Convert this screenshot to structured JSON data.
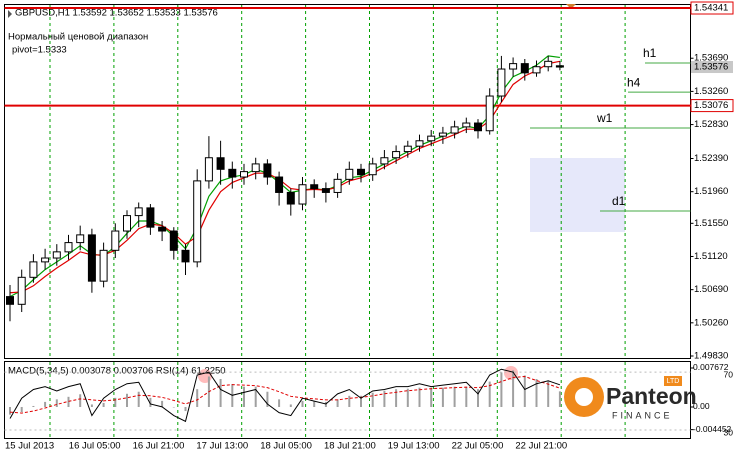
{
  "chart_data": [
    {
      "type": "candlestick",
      "title": "GBPUSD,H1  1.53592 1.53652 1.53533 1.53576",
      "annotations": [
        "Нормальный ценовой диапазон",
        "pivot=1.5333"
      ],
      "ylim": [
        1.49804,
        1.5438
      ],
      "yticks": [
        {
          "value": 1.5369,
          "label": "1.53690"
        },
        {
          "value": 1.5326,
          "label": "1.53260"
        },
        {
          "value": 1.5283,
          "label": "1.52830"
        },
        {
          "value": 1.5239,
          "label": "1.52390"
        },
        {
          "value": 1.5196,
          "label": "1.51960"
        },
        {
          "value": 1.5155,
          "label": "1.51550"
        },
        {
          "value": 1.5112,
          "label": "1.51120"
        },
        {
          "value": 1.5069,
          "label": "1.50690"
        },
        {
          "value": 1.5026,
          "label": "1.50260"
        },
        {
          "value": 1.4983,
          "label": "1.49830"
        }
      ],
      "red_lines": [
        1.54341,
        1.53076
      ],
      "levels": [
        {
          "label": "h1",
          "value": 1.53628
        },
        {
          "label": "h4",
          "value": 1.5325
        },
        {
          "label": "w1",
          "value": 1.52785
        },
        {
          "label": "d1",
          "value": 1.5171
        }
      ],
      "x_labels": [
        "15 Jul 2013",
        "16 Jul 05:00",
        "16 Jul 21:00",
        "17 Jul 13:00",
        "18 Jul 05:00",
        "18 Jul 21:00",
        "19 Jul 13:00",
        "22 Jul 05:00",
        "22 Jul 21:00"
      ],
      "open": [
        1.506,
        1.505,
        1.5085,
        1.5105,
        1.511,
        1.5118,
        1.513,
        1.514,
        1.508,
        1.512,
        1.5145,
        1.5165,
        1.5175,
        1.515,
        1.5145,
        1.512,
        1.5105,
        1.521,
        1.524,
        1.5225,
        1.5215,
        1.5222,
        1.5232,
        1.5215,
        1.5195,
        1.518,
        1.5205,
        1.52,
        1.5195,
        1.5212,
        1.5225,
        1.5218,
        1.5232,
        1.524,
        1.5248,
        1.5255,
        1.5262,
        1.5268,
        1.5272,
        1.528,
        1.5285,
        1.5275,
        1.532,
        1.5355,
        1.5362,
        1.535,
        1.5358,
        1.53592
      ],
      "high": [
        1.5075,
        1.5095,
        1.5115,
        1.5122,
        1.5128,
        1.514,
        1.5152,
        1.5148,
        1.513,
        1.5155,
        1.5172,
        1.5182,
        1.518,
        1.5158,
        1.515,
        1.5128,
        1.5225,
        1.5268,
        1.5262,
        1.5235,
        1.5232,
        1.524,
        1.5238,
        1.5222,
        1.52,
        1.5215,
        1.5212,
        1.5208,
        1.522,
        1.5235,
        1.5232,
        1.524,
        1.525,
        1.5256,
        1.5262,
        1.527,
        1.5276,
        1.528,
        1.5288,
        1.5292,
        1.529,
        1.533,
        1.5372,
        1.537,
        1.5368,
        1.5366,
        1.5372,
        1.53652
      ],
      "low": [
        1.5028,
        1.504,
        1.5078,
        1.5095,
        1.51,
        1.5108,
        1.512,
        1.5065,
        1.5072,
        1.511,
        1.5135,
        1.515,
        1.514,
        1.5132,
        1.5108,
        1.5088,
        1.5098,
        1.52,
        1.5205,
        1.52,
        1.5205,
        1.5212,
        1.5205,
        1.5178,
        1.5165,
        1.5172,
        1.5188,
        1.5182,
        1.5188,
        1.5205,
        1.5208,
        1.521,
        1.5225,
        1.5232,
        1.524,
        1.5248,
        1.5255,
        1.5258,
        1.5265,
        1.5272,
        1.5265,
        1.527,
        1.5312,
        1.5345,
        1.534,
        1.5345,
        1.5352,
        1.53533
      ],
      "close": [
        1.505,
        1.5085,
        1.5105,
        1.511,
        1.5118,
        1.513,
        1.514,
        1.508,
        1.512,
        1.5145,
        1.5165,
        1.5175,
        1.515,
        1.5145,
        1.512,
        1.5105,
        1.521,
        1.524,
        1.5225,
        1.5215,
        1.5222,
        1.5232,
        1.5215,
        1.5195,
        1.518,
        1.5205,
        1.52,
        1.5195,
        1.5212,
        1.5225,
        1.5218,
        1.5232,
        1.524,
        1.5248,
        1.5255,
        1.5262,
        1.5268,
        1.5272,
        1.528,
        1.5285,
        1.5275,
        1.532,
        1.5355,
        1.5362,
        1.535,
        1.5358,
        1.5365,
        1.53576
      ],
      "series": [
        {
          "color": "#00a000",
          "values": [
            1.506,
            1.5068,
            1.5082,
            1.5095,
            1.5105,
            1.5115,
            1.5126,
            1.5115,
            1.5113,
            1.5125,
            1.5142,
            1.5158,
            1.5158,
            1.5152,
            1.5138,
            1.5122,
            1.515,
            1.519,
            1.521,
            1.5215,
            1.5218,
            1.5225,
            1.522,
            1.5208,
            1.5195,
            1.5198,
            1.52,
            1.5198,
            1.5204,
            1.5214,
            1.5216,
            1.5224,
            1.5232,
            1.524,
            1.5248,
            1.5256,
            1.5262,
            1.5268,
            1.5275,
            1.5281,
            1.5278,
            1.5295,
            1.5325,
            1.5345,
            1.5352,
            1.536,
            1.5372,
            1.537
          ]
        },
        {
          "color": "#e00000",
          "values": [
            1.5065,
            1.5066,
            1.5074,
            1.5086,
            1.5097,
            1.5107,
            1.5118,
            1.5114,
            1.5114,
            1.512,
            1.5133,
            1.5148,
            1.5154,
            1.5152,
            1.5142,
            1.5128,
            1.5138,
            1.5172,
            1.5196,
            1.5208,
            1.5214,
            1.522,
            1.522,
            1.5212,
            1.52,
            1.5198,
            1.5199,
            1.5198,
            1.5202,
            1.521,
            1.5214,
            1.522,
            1.5228,
            1.5236,
            1.5244,
            1.5252,
            1.5258,
            1.5264,
            1.527,
            1.5277,
            1.5277,
            1.5288,
            1.5312,
            1.5335,
            1.5346,
            1.5353,
            1.5362,
            1.5365
          ]
        }
      ]
    },
    {
      "type": "macd",
      "title": "MACD(5,34,5) 0.003078 0.003706  RSI(14) 61.2250",
      "ylim": [
        -0.0061,
        0.00885
      ],
      "yticks": [
        0.007672,
        {
          "value": 0,
          "label": "0.00"
        },
        -0.004452
      ],
      "y2lim": [
        24.5,
        77
      ],
      "y2ticks": [
        70,
        30
      ],
      "series": [
        {
          "color": "#a0a0a0",
          "values": [
            -0.0015,
            -0.001,
            0.0002,
            0.001,
            0.0015,
            0.002,
            0.0025,
            0.0005,
            0.0008,
            0.0018,
            0.0026,
            0.003,
            0.0018,
            0.0012,
            0,
            -0.0008,
            0.0035,
            0.006,
            0.0055,
            0.0045,
            0.004,
            0.004,
            0.003,
            0.0015,
            0.0005,
            0.0012,
            0.0012,
            0.001,
            0.0015,
            0.0022,
            0.0022,
            0.0028,
            0.0032,
            0.0035,
            0.0036,
            0.0038,
            0.0038,
            0.0038,
            0.004,
            0.004,
            0.0035,
            0.005,
            0.0068,
            0.0072,
            0.0062,
            0.0055,
            0.005,
            0.003078
          ]
        },
        {
          "color": "#e00000",
          "values": [
            -0.001,
            -0.0012,
            -0.0008,
            -0.0002,
            0.0005,
            0.0011,
            0.0016,
            0.0014,
            0.0012,
            0.0014,
            0.0018,
            0.0023,
            0.0022,
            0.0019,
            0.0013,
            0.0006,
            0.0014,
            0.003,
            0.0042,
            0.0044,
            0.0043,
            0.0042,
            0.0038,
            0.003,
            0.0021,
            0.0018,
            0.0016,
            0.0014,
            0.0014,
            0.0017,
            0.0019,
            0.0022,
            0.0026,
            0.0029,
            0.0032,
            0.0034,
            0.0036,
            0.0037,
            0.0038,
            0.0039,
            0.0038,
            0.0042,
            0.005,
            0.0058,
            0.006,
            0.0052,
            0.0045,
            0.003706
          ]
        },
        {
          "color": "#000000",
          "axis": "y2",
          "values": [
            38,
            52,
            58,
            60,
            57,
            60,
            62,
            40,
            52,
            58,
            62,
            63,
            48,
            46,
            40,
            36,
            68,
            70,
            58,
            54,
            56,
            58,
            48,
            42,
            40,
            52,
            50,
            48,
            55,
            58,
            52,
            57,
            58,
            60,
            60,
            62,
            60,
            61,
            62,
            63,
            55,
            68,
            72,
            70,
            58,
            62,
            64,
            61.225
          ]
        }
      ]
    }
  ],
  "logo": {
    "name": "Panteon",
    "subtitle": "FINANCE",
    "badge": "LTD"
  }
}
